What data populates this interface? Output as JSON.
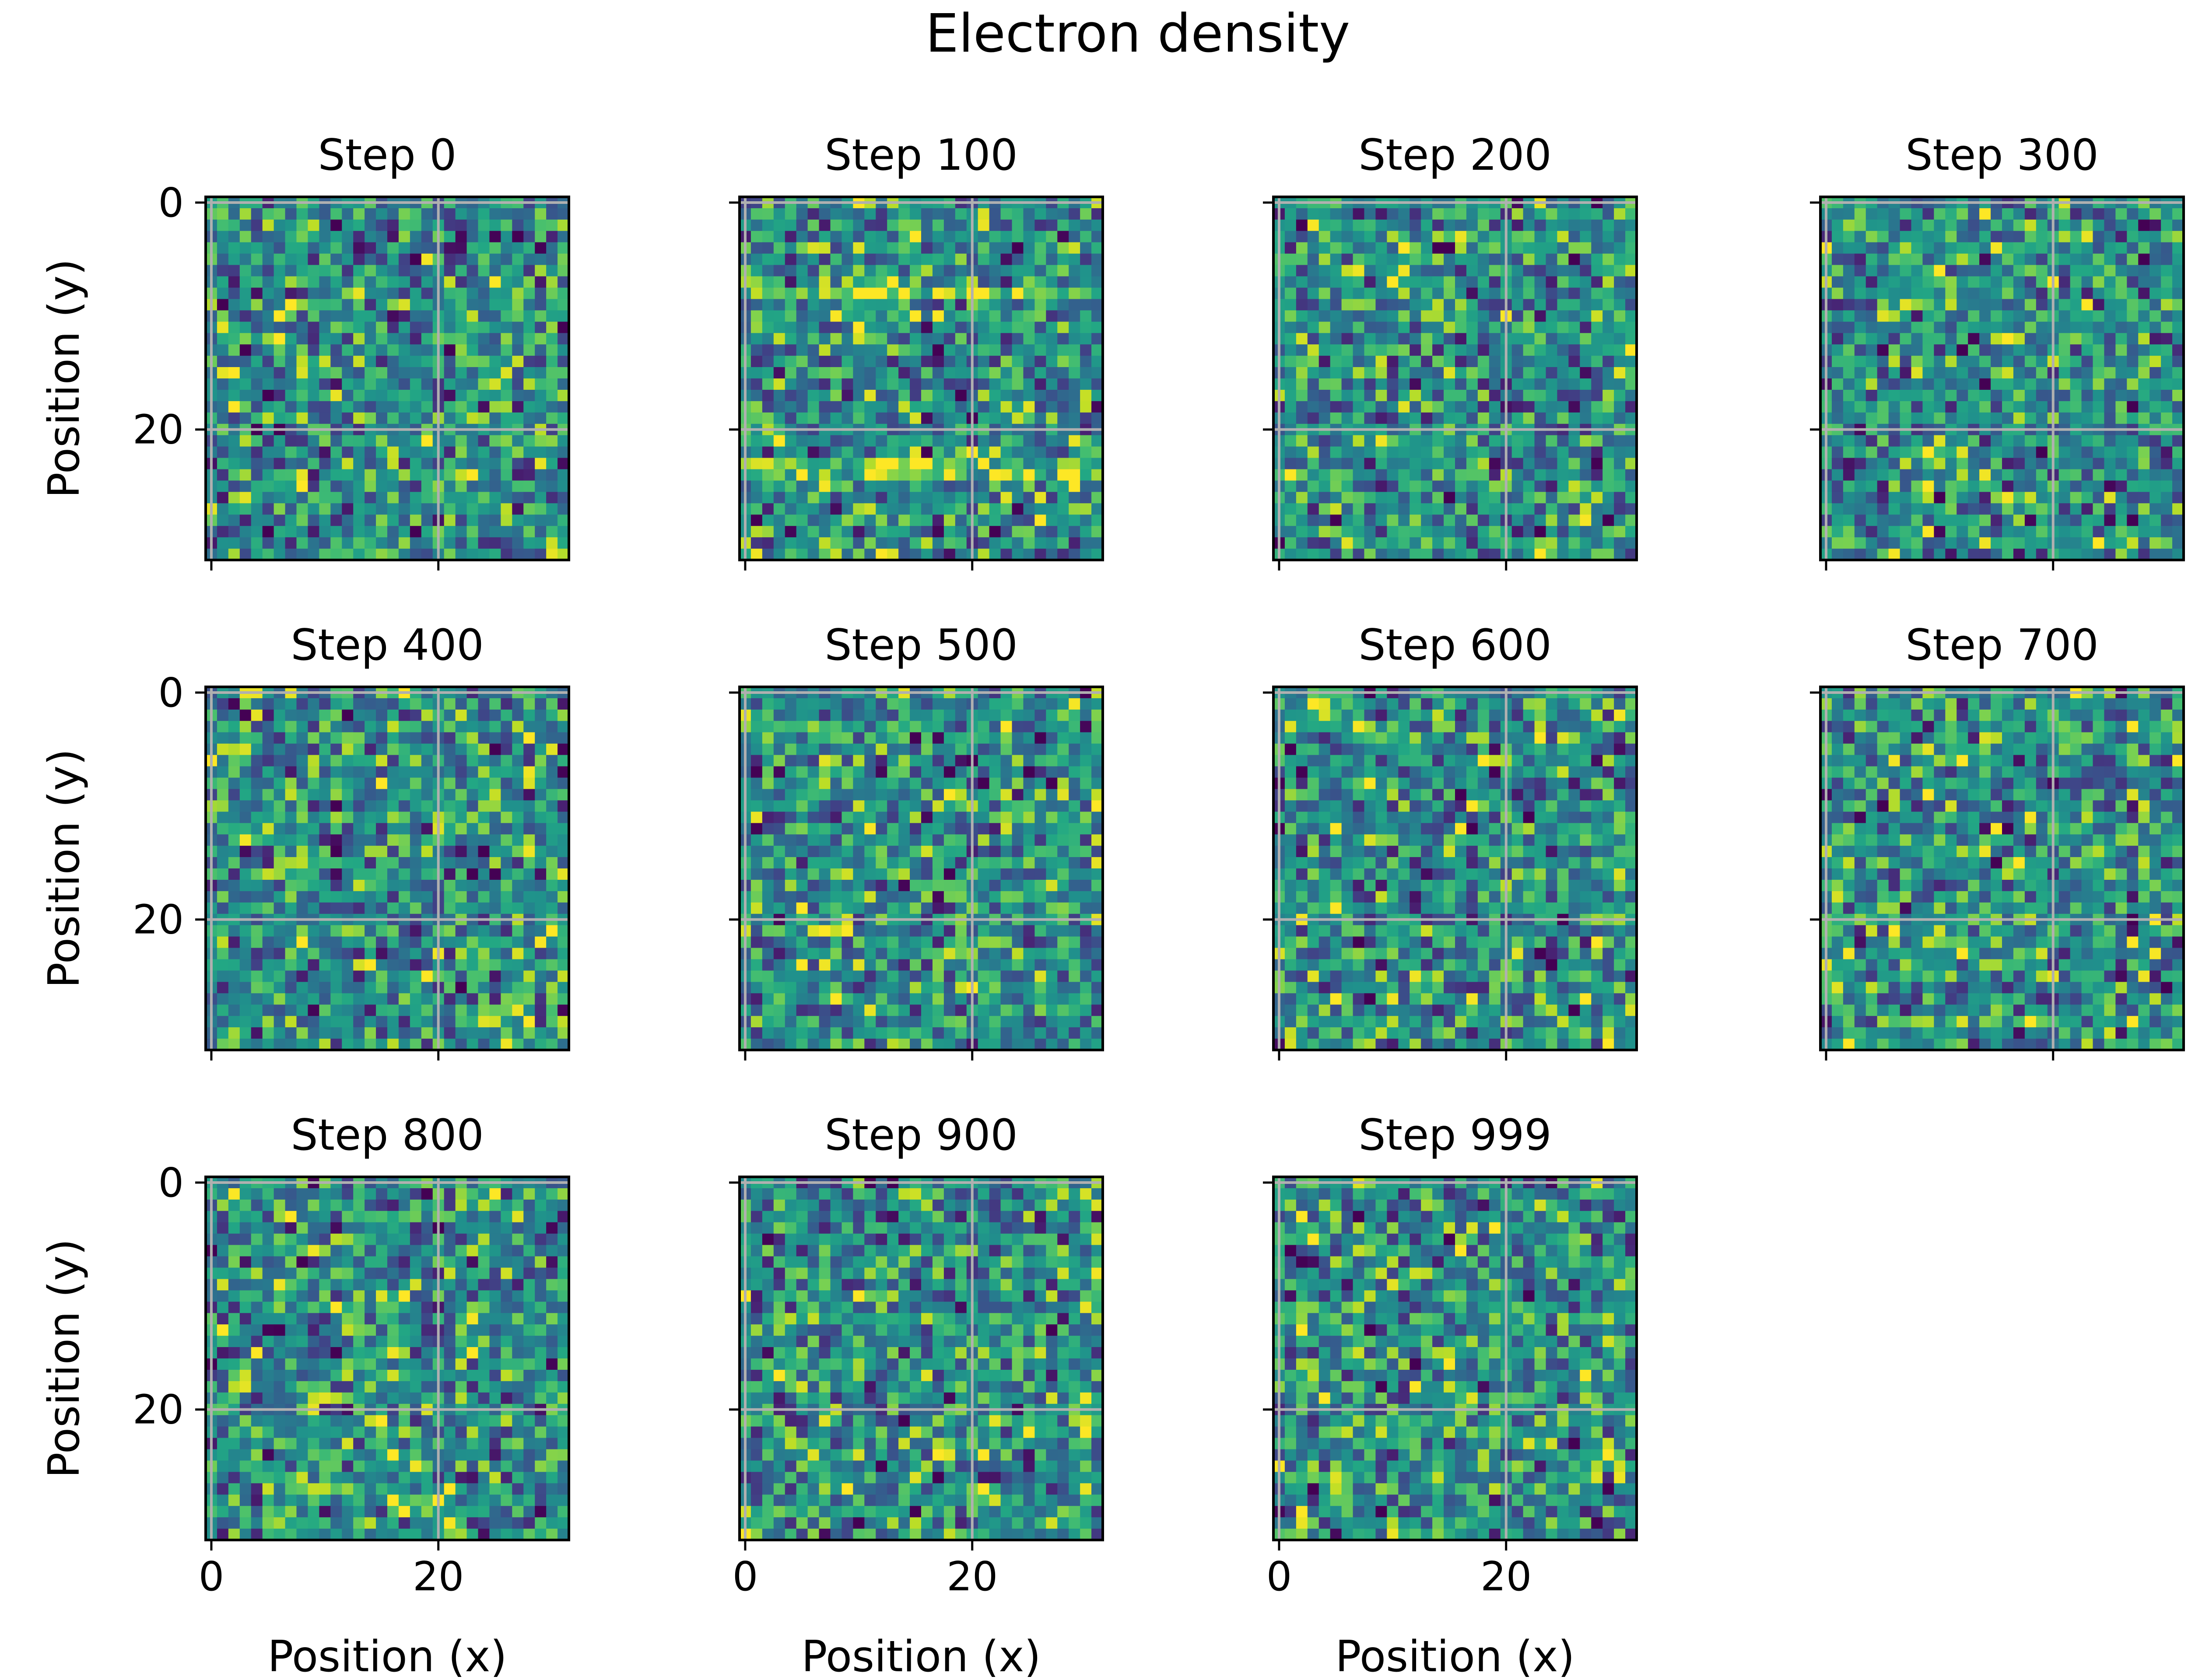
{
  "figure": {
    "title": "Electron density",
    "colormap": "viridis",
    "gridline_color": "#b0b0b0",
    "axis_color": "#000000"
  },
  "chart_data": [
    {
      "type": "heatmap",
      "title": "Step 0",
      "step": 0,
      "grid_size": [
        32,
        32
      ],
      "xlim": [
        -0.5,
        31.5
      ],
      "ylim": [
        31.5,
        -0.5
      ],
      "xticks": [
        0,
        20
      ],
      "yticks": [
        0,
        20
      ],
      "xlabel": "",
      "ylabel": "Position (y)",
      "grid": true,
      "show_xticklabels": false,
      "show_yticklabels": true,
      "seed": 11,
      "bias": "none"
    },
    {
      "type": "heatmap",
      "title": "Step 100",
      "step": 100,
      "grid_size": [
        32,
        32
      ],
      "xlim": [
        -0.5,
        31.5
      ],
      "ylim": [
        31.5,
        -0.5
      ],
      "xticks": [
        0,
        20
      ],
      "yticks": [
        0,
        20
      ],
      "xlabel": "",
      "ylabel": "",
      "grid": true,
      "show_xticklabels": false,
      "show_yticklabels": false,
      "seed": 23,
      "bias": "horizontal-bands"
    },
    {
      "type": "heatmap",
      "title": "Step 200",
      "step": 200,
      "grid_size": [
        32,
        32
      ],
      "xlim": [
        -0.5,
        31.5
      ],
      "ylim": [
        31.5,
        -0.5
      ],
      "xticks": [
        0,
        20
      ],
      "yticks": [
        0,
        20
      ],
      "xlabel": "",
      "ylabel": "",
      "grid": true,
      "show_xticklabels": false,
      "show_yticklabels": false,
      "seed": 37,
      "bias": "none"
    },
    {
      "type": "heatmap",
      "title": "Step 300",
      "step": 300,
      "grid_size": [
        32,
        32
      ],
      "xlim": [
        -0.5,
        31.5
      ],
      "ylim": [
        31.5,
        -0.5
      ],
      "xticks": [
        0,
        20
      ],
      "yticks": [
        0,
        20
      ],
      "xlabel": "",
      "ylabel": "",
      "grid": true,
      "show_xticklabels": false,
      "show_yticklabels": false,
      "seed": 41,
      "bias": "none"
    },
    {
      "type": "heatmap",
      "title": "Step 400",
      "step": 400,
      "grid_size": [
        32,
        32
      ],
      "xlim": [
        -0.5,
        31.5
      ],
      "ylim": [
        31.5,
        -0.5
      ],
      "xticks": [
        0,
        20
      ],
      "yticks": [
        0,
        20
      ],
      "xlabel": "",
      "ylabel": "Position (y)",
      "grid": true,
      "show_xticklabels": false,
      "show_yticklabels": true,
      "seed": 53,
      "bias": "none"
    },
    {
      "type": "heatmap",
      "title": "Step 500",
      "step": 500,
      "grid_size": [
        32,
        32
      ],
      "xlim": [
        -0.5,
        31.5
      ],
      "ylim": [
        31.5,
        -0.5
      ],
      "xticks": [
        0,
        20
      ],
      "yticks": [
        0,
        20
      ],
      "xlabel": "",
      "ylabel": "",
      "grid": true,
      "show_xticklabels": false,
      "show_yticklabels": false,
      "seed": 67,
      "bias": "none"
    },
    {
      "type": "heatmap",
      "title": "Step 600",
      "step": 600,
      "grid_size": [
        32,
        32
      ],
      "xlim": [
        -0.5,
        31.5
      ],
      "ylim": [
        31.5,
        -0.5
      ],
      "xticks": [
        0,
        20
      ],
      "yticks": [
        0,
        20
      ],
      "xlabel": "",
      "ylabel": "",
      "grid": true,
      "show_xticklabels": false,
      "show_yticklabels": false,
      "seed": 71,
      "bias": "none"
    },
    {
      "type": "heatmap",
      "title": "Step 700",
      "step": 700,
      "grid_size": [
        32,
        32
      ],
      "xlim": [
        -0.5,
        31.5
      ],
      "ylim": [
        31.5,
        -0.5
      ],
      "xticks": [
        0,
        20
      ],
      "yticks": [
        0,
        20
      ],
      "xlabel": "",
      "ylabel": "",
      "grid": true,
      "show_xticklabels": false,
      "show_yticklabels": false,
      "seed": 83,
      "bias": "none"
    },
    {
      "type": "heatmap",
      "title": "Step 800",
      "step": 800,
      "grid_size": [
        32,
        32
      ],
      "xlim": [
        -0.5,
        31.5
      ],
      "ylim": [
        31.5,
        -0.5
      ],
      "xticks": [
        0,
        20
      ],
      "yticks": [
        0,
        20
      ],
      "xlabel": "Position (x)",
      "ylabel": "Position (y)",
      "grid": true,
      "show_xticklabels": true,
      "show_yticklabels": true,
      "seed": 97,
      "bias": "none"
    },
    {
      "type": "heatmap",
      "title": "Step 900",
      "step": 900,
      "grid_size": [
        32,
        32
      ],
      "xlim": [
        -0.5,
        31.5
      ],
      "ylim": [
        31.5,
        -0.5
      ],
      "xticks": [
        0,
        20
      ],
      "yticks": [
        0,
        20
      ],
      "xlabel": "Position (x)",
      "ylabel": "",
      "grid": true,
      "show_xticklabels": true,
      "show_yticklabels": false,
      "seed": 101,
      "bias": "none"
    },
    {
      "type": "heatmap",
      "title": "Step 999",
      "step": 999,
      "grid_size": [
        32,
        32
      ],
      "xlim": [
        -0.5,
        31.5
      ],
      "ylim": [
        31.5,
        -0.5
      ],
      "xticks": [
        0,
        20
      ],
      "yticks": [
        0,
        20
      ],
      "xlabel": "Position (x)",
      "ylabel": "",
      "grid": true,
      "show_xticklabels": true,
      "show_yticklabels": false,
      "seed": 113,
      "bias": "none"
    }
  ]
}
